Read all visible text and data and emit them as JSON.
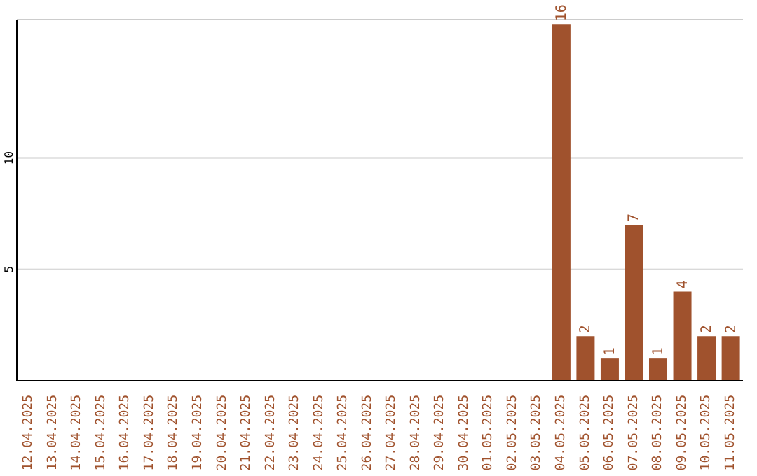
{
  "chart_data": {
    "type": "bar",
    "categories": [
      "12.04.2025",
      "13.04.2025",
      "14.04.2025",
      "15.04.2025",
      "16.04.2025",
      "17.04.2025",
      "18.04.2025",
      "19.04.2025",
      "20.04.2025",
      "21.04.2025",
      "22.04.2025",
      "23.04.2025",
      "24.04.2025",
      "25.04.2025",
      "26.04.2025",
      "27.04.2025",
      "28.04.2025",
      "29.04.2025",
      "30.04.2025",
      "01.05.2025",
      "02.05.2025",
      "03.05.2025",
      "04.05.2025",
      "05.05.2025",
      "06.05.2025",
      "07.05.2025",
      "08.05.2025",
      "09.05.2025",
      "10.05.2025",
      "11.05.2025"
    ],
    "values": [
      0,
      0,
      0,
      0,
      0,
      0,
      0,
      0,
      0,
      0,
      0,
      0,
      0,
      0,
      0,
      0,
      0,
      0,
      0,
      0,
      0,
      0,
      16,
      2,
      1,
      7,
      1,
      4,
      2,
      2
    ],
    "value_labels": [
      null,
      null,
      null,
      null,
      null,
      null,
      null,
      null,
      null,
      null,
      null,
      null,
      null,
      null,
      null,
      null,
      null,
      null,
      null,
      null,
      null,
      null,
      "16",
      "2",
      "1",
      "7",
      "1",
      "4",
      "2",
      "2"
    ],
    "color": "#a0522d",
    "ylim": [
      0,
      16.2
    ],
    "yticks": [
      5,
      10
    ],
    "grid": "y"
  }
}
